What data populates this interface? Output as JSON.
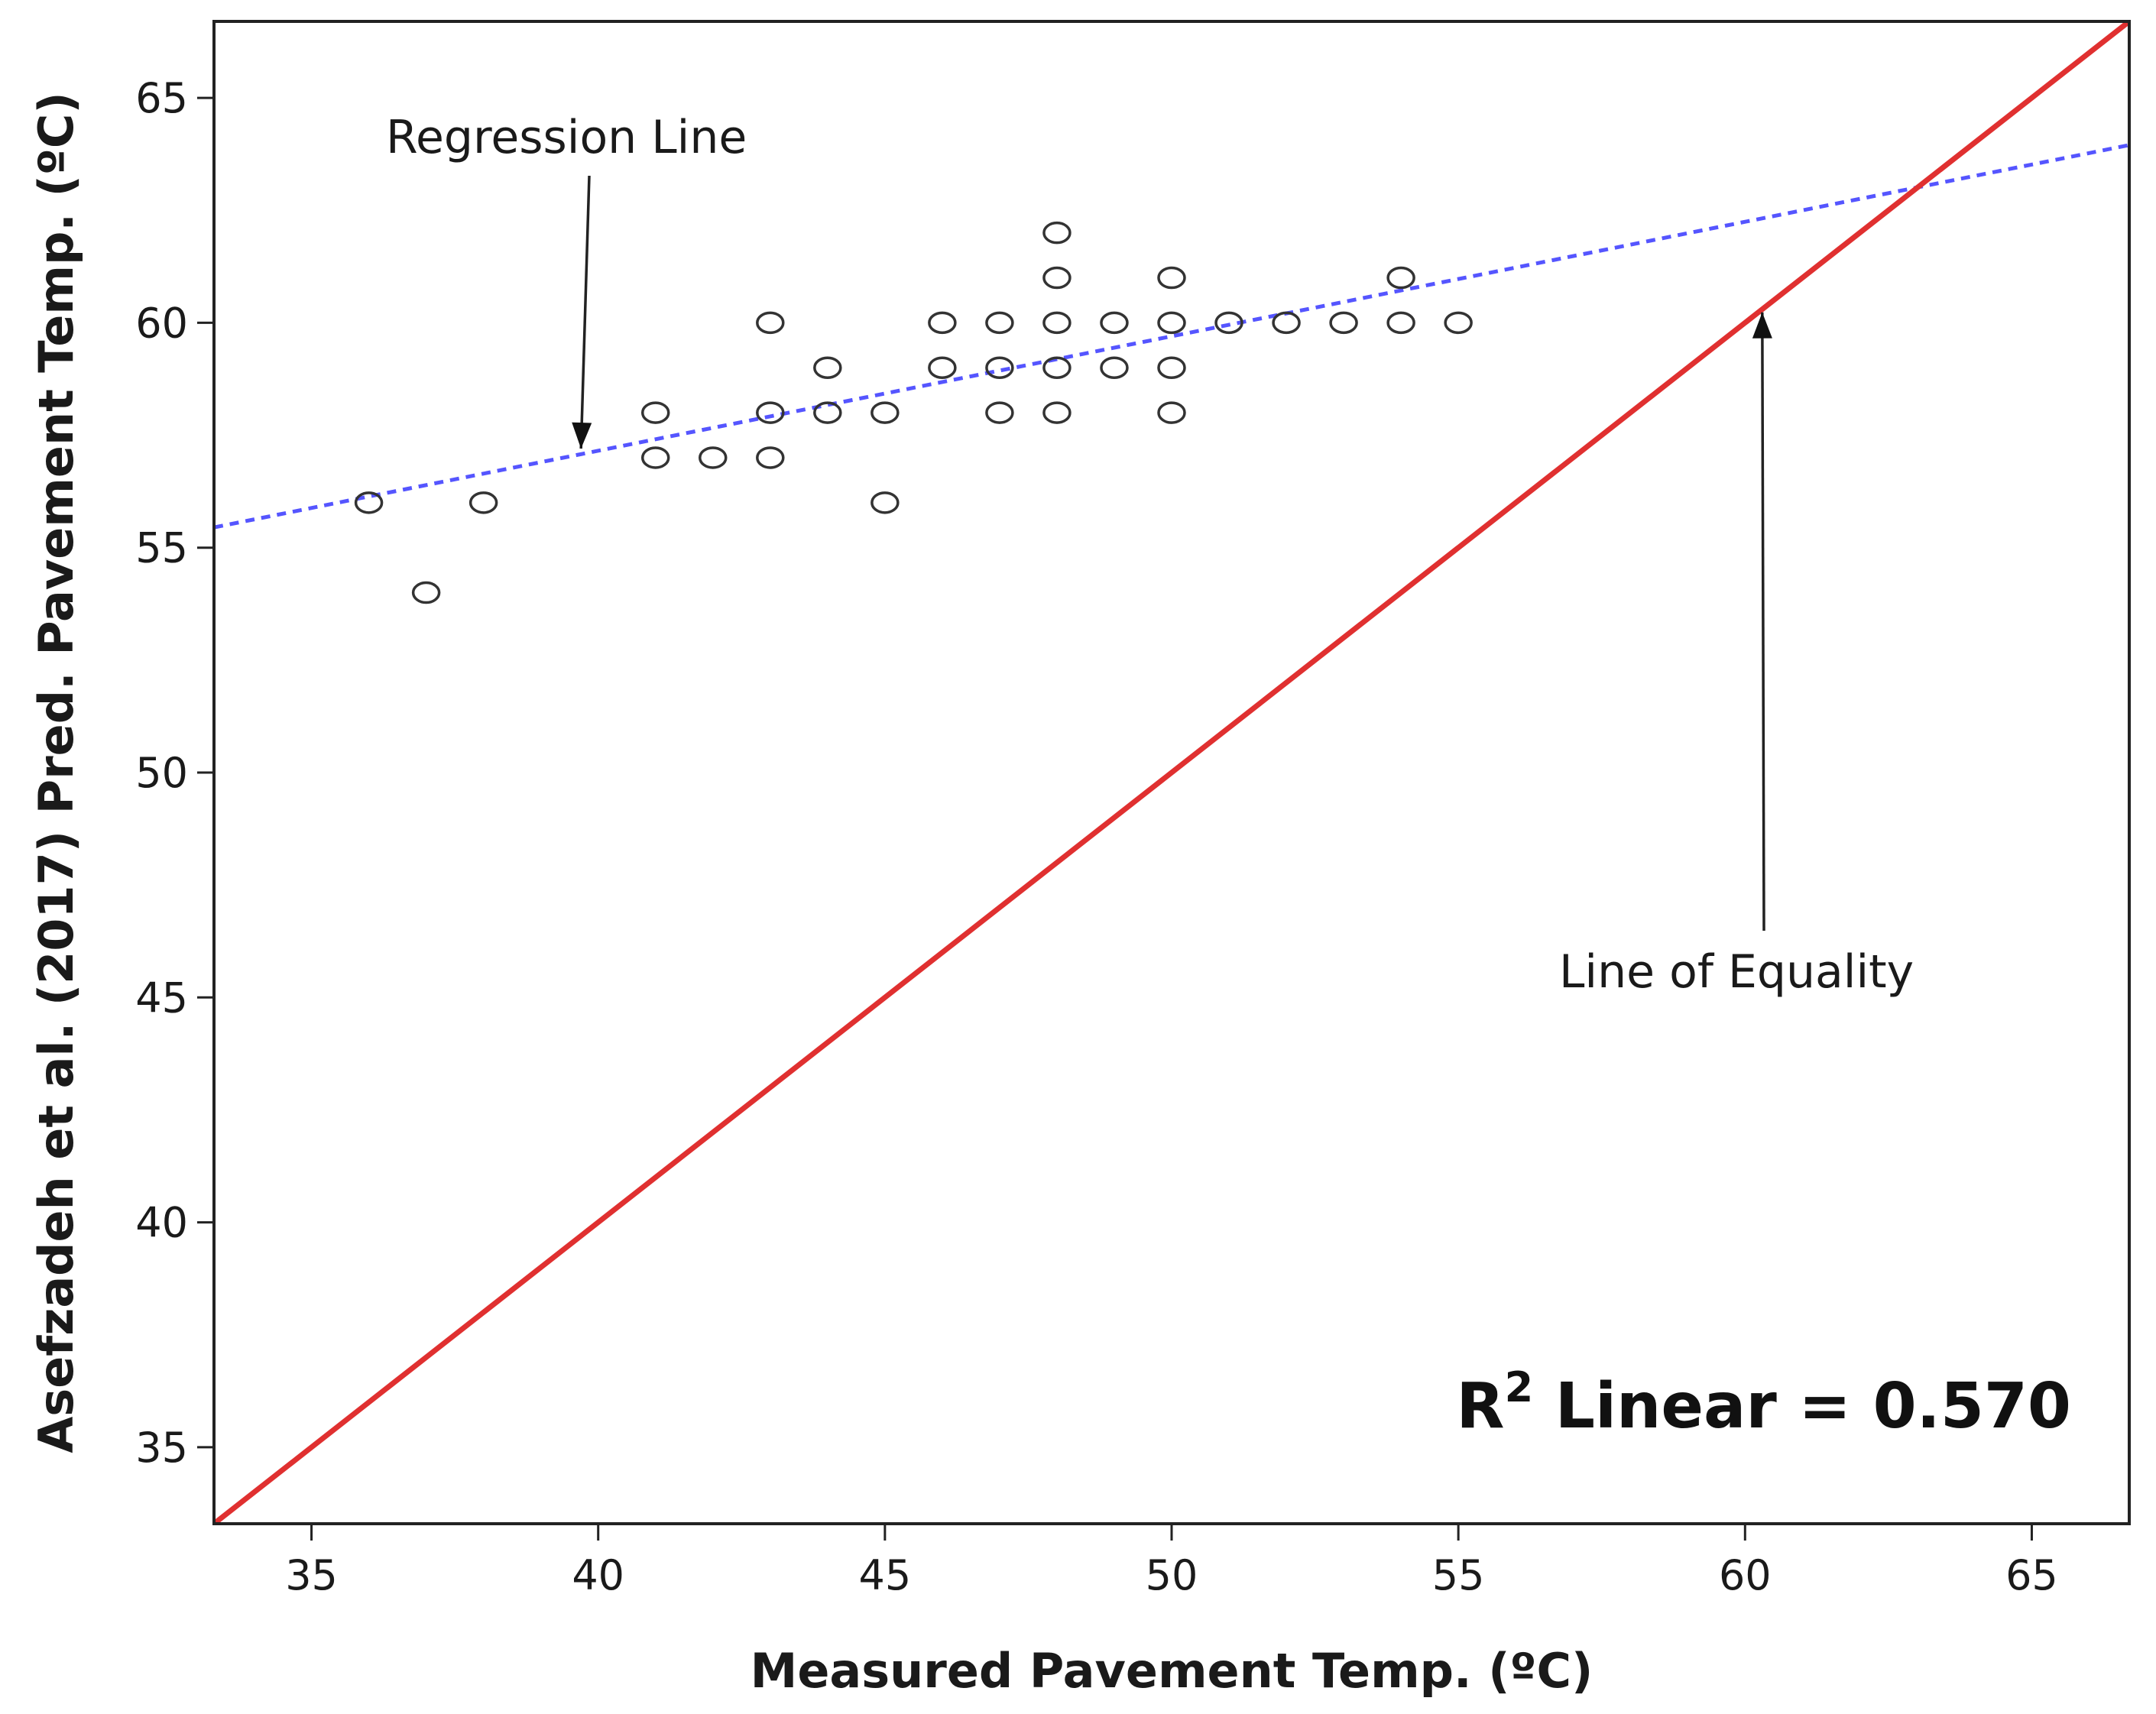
{
  "chart_data": {
    "type": "scatter",
    "xlabel": "Measured Pavement Temp. (ºC)",
    "ylabel": "Asefzadeh et al. (2017) Pred. Pavement Temp. (ºC)",
    "xlim": [
      33.3,
      66.7
    ],
    "ylim": [
      33.3,
      66.7
    ],
    "x_ticks": [
      35,
      40,
      45,
      50,
      55,
      60,
      65
    ],
    "y_ticks": [
      35,
      40,
      45,
      50,
      55,
      60,
      65
    ],
    "x_tick_labels": [
      "35",
      "40",
      "45",
      "50",
      "55",
      "60",
      "65"
    ],
    "y_tick_labels": [
      "35",
      "40",
      "45",
      "50",
      "55",
      "60",
      "65"
    ],
    "grid": false,
    "points": [
      [
        36,
        56
      ],
      [
        37,
        54
      ],
      [
        38,
        56
      ],
      [
        41,
        58
      ],
      [
        41,
        57
      ],
      [
        42,
        57
      ],
      [
        43,
        60
      ],
      [
        43,
        58
      ],
      [
        43,
        57
      ],
      [
        44,
        59
      ],
      [
        44,
        58
      ],
      [
        45,
        58
      ],
      [
        45,
        56
      ],
      [
        46,
        60
      ],
      [
        46,
        59
      ],
      [
        47,
        60
      ],
      [
        47,
        59
      ],
      [
        47,
        58
      ],
      [
        48,
        62
      ],
      [
        48,
        61
      ],
      [
        48,
        60
      ],
      [
        48,
        59
      ],
      [
        48,
        58
      ],
      [
        49,
        60
      ],
      [
        49,
        59
      ],
      [
        50,
        61
      ],
      [
        50,
        60
      ],
      [
        50,
        59
      ],
      [
        50,
        58
      ],
      [
        51,
        60
      ],
      [
        52,
        60
      ],
      [
        53,
        60
      ],
      [
        54,
        61
      ],
      [
        54,
        60
      ],
      [
        55,
        60
      ]
    ],
    "series": [
      {
        "name": "Regression Line",
        "color": "#5555ff",
        "style": "dotted",
        "x": [
          33.3,
          66.7
        ],
        "y": [
          55.45,
          63.95
        ]
      },
      {
        "name": "Line of Equality",
        "color": "#e03030",
        "style": "solid",
        "x": [
          33.3,
          66.7
        ],
        "y": [
          33.3,
          66.7
        ]
      }
    ],
    "annotations": [
      {
        "text": "Regression Line",
        "points_to": [
          39.7,
          57.1
        ]
      },
      {
        "text": "Line of Equality",
        "points_to": [
          60.3,
          60.3
        ]
      }
    ],
    "r2_label": {
      "prefix": "R",
      "sup": "2",
      "suffix": " Linear = 0.570"
    }
  }
}
